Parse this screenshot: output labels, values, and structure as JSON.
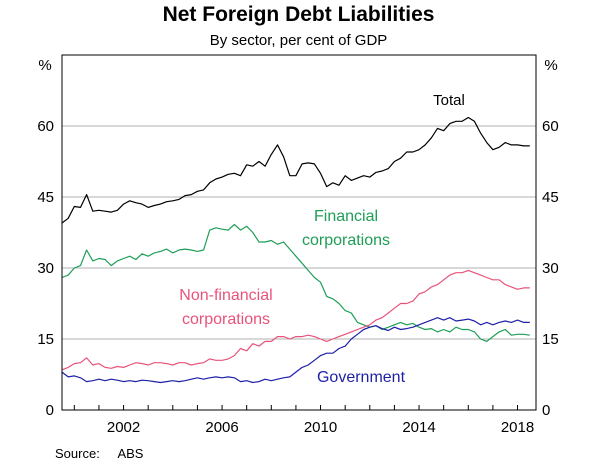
{
  "chart_data": {
    "type": "line",
    "title": "Net Foreign Debt Liabilities",
    "subtitle": "By sector, per cent of GDP",
    "ylabel_left": "%",
    "ylabel_right": "%",
    "xlim": [
      1999.5,
      2018.75
    ],
    "ylim": [
      0,
      75
    ],
    "yticks": [
      0,
      15,
      30,
      45,
      60
    ],
    "ytick_labels": [
      "0",
      "15",
      "30",
      "45",
      "60"
    ],
    "xticks": [
      2002,
      2006,
      2010,
      2014,
      2018
    ],
    "xtick_labels": [
      "2002",
      "2006",
      "2010",
      "2014",
      "2018"
    ],
    "grid": true,
    "legend": "inline labels",
    "series": [
      {
        "name": "Total",
        "color": "#000000",
        "x": [
          1999.5,
          1999.75,
          2000.0,
          2000.25,
          2000.5,
          2000.75,
          2001.0,
          2001.25,
          2001.5,
          2001.75,
          2002.0,
          2002.25,
          2002.5,
          2002.75,
          2003.0,
          2003.25,
          2003.5,
          2003.75,
          2004.0,
          2004.25,
          2004.5,
          2004.75,
          2005.0,
          2005.25,
          2005.5,
          2005.75,
          2006.0,
          2006.25,
          2006.5,
          2006.75,
          2007.0,
          2007.25,
          2007.5,
          2007.75,
          2008.0,
          2008.25,
          2008.5,
          2008.75,
          2009.0,
          2009.25,
          2009.5,
          2009.75,
          2010.0,
          2010.25,
          2010.5,
          2010.75,
          2011.0,
          2011.25,
          2011.5,
          2011.75,
          2012.0,
          2012.25,
          2012.5,
          2012.75,
          2013.0,
          2013.25,
          2013.5,
          2013.75,
          2014.0,
          2014.25,
          2014.5,
          2014.75,
          2015.0,
          2015.25,
          2015.5,
          2015.75,
          2016.0,
          2016.25,
          2016.5,
          2016.75,
          2017.0,
          2017.25,
          2017.5,
          2017.75,
          2018.0,
          2018.25,
          2018.5
        ],
        "values": [
          39.5,
          40.5,
          43.0,
          42.8,
          45.5,
          42.0,
          42.2,
          42.0,
          41.8,
          42.2,
          43.5,
          44.2,
          43.8,
          43.5,
          42.8,
          43.2,
          43.5,
          44.0,
          44.2,
          44.5,
          45.3,
          45.5,
          46.2,
          46.5,
          48.0,
          48.8,
          49.2,
          49.8,
          50.0,
          49.5,
          51.8,
          51.5,
          52.5,
          51.5,
          54.0,
          56.0,
          53.5,
          49.5,
          49.5,
          52.0,
          52.2,
          52.0,
          50.0,
          47.2,
          48.0,
          47.5,
          49.5,
          48.5,
          49.0,
          49.5,
          49.2,
          50.2,
          50.5,
          51.0,
          52.5,
          53.2,
          54.5,
          54.5,
          55.0,
          56.0,
          57.5,
          59.5,
          59.0,
          60.5,
          61.0,
          61.0,
          61.8,
          61.0,
          58.5,
          56.5,
          55.0,
          55.5,
          56.5,
          56.0,
          56.0,
          55.8,
          55.8
        ]
      },
      {
        "name": "Financial corporations",
        "color": "#1e9e57",
        "x": [
          1999.5,
          1999.75,
          2000.0,
          2000.25,
          2000.5,
          2000.75,
          2001.0,
          2001.25,
          2001.5,
          2001.75,
          2002.0,
          2002.25,
          2002.5,
          2002.75,
          2003.0,
          2003.25,
          2003.5,
          2003.75,
          2004.0,
          2004.25,
          2004.5,
          2004.75,
          2005.0,
          2005.25,
          2005.5,
          2005.75,
          2006.0,
          2006.25,
          2006.5,
          2006.75,
          2007.0,
          2007.25,
          2007.5,
          2007.75,
          2008.0,
          2008.25,
          2008.5,
          2008.75,
          2009.0,
          2009.25,
          2009.5,
          2009.75,
          2010.0,
          2010.25,
          2010.5,
          2010.75,
          2011.0,
          2011.25,
          2011.5,
          2011.75,
          2012.0,
          2012.25,
          2012.5,
          2012.75,
          2013.0,
          2013.25,
          2013.5,
          2013.75,
          2014.0,
          2014.25,
          2014.5,
          2014.75,
          2015.0,
          2015.25,
          2015.5,
          2015.75,
          2016.0,
          2016.25,
          2016.5,
          2016.75,
          2017.0,
          2017.25,
          2017.5,
          2017.75,
          2018.0,
          2018.25,
          2018.5
        ],
        "values": [
          28.0,
          28.5,
          30.0,
          30.5,
          33.8,
          31.5,
          32.0,
          31.8,
          30.5,
          31.5,
          32.0,
          32.5,
          31.8,
          33.0,
          32.5,
          33.2,
          33.5,
          34.0,
          33.2,
          33.8,
          34.0,
          33.8,
          33.5,
          33.8,
          38.0,
          38.5,
          38.2,
          38.0,
          39.2,
          38.0,
          38.8,
          37.5,
          35.5,
          35.5,
          35.8,
          35.0,
          35.5,
          34.0,
          32.5,
          31.0,
          29.5,
          28.0,
          27.0,
          24.0,
          23.5,
          22.5,
          21.0,
          20.5,
          18.5,
          18.0,
          17.5,
          17.8,
          17.0,
          17.5,
          18.0,
          18.5,
          18.0,
          18.3,
          17.5,
          17.0,
          17.2,
          16.5,
          17.0,
          16.5,
          17.5,
          17.0,
          17.0,
          16.5,
          15.0,
          14.5,
          15.5,
          16.5,
          17.0,
          15.8,
          16.0,
          16.0,
          15.8
        ]
      },
      {
        "name": "Non-financial corporations",
        "color": "#e8537a",
        "x": [
          1999.5,
          1999.75,
          2000.0,
          2000.25,
          2000.5,
          2000.75,
          2001.0,
          2001.25,
          2001.5,
          2001.75,
          2002.0,
          2002.25,
          2002.5,
          2002.75,
          2003.0,
          2003.25,
          2003.5,
          2003.75,
          2004.0,
          2004.25,
          2004.5,
          2004.75,
          2005.0,
          2005.25,
          2005.5,
          2005.75,
          2006.0,
          2006.25,
          2006.5,
          2006.75,
          2007.0,
          2007.25,
          2007.5,
          2007.75,
          2008.0,
          2008.25,
          2008.5,
          2008.75,
          2009.0,
          2009.25,
          2009.5,
          2009.75,
          2010.0,
          2010.25,
          2010.5,
          2010.75,
          2011.0,
          2011.25,
          2011.5,
          2011.75,
          2012.0,
          2012.25,
          2012.5,
          2012.75,
          2013.0,
          2013.25,
          2013.5,
          2013.75,
          2014.0,
          2014.25,
          2014.5,
          2014.75,
          2015.0,
          2015.25,
          2015.5,
          2015.75,
          2016.0,
          2016.25,
          2016.5,
          2016.75,
          2017.0,
          2017.25,
          2017.5,
          2017.75,
          2018.0,
          2018.25,
          2018.5
        ],
        "values": [
          8.5,
          9.0,
          9.8,
          10.0,
          11.0,
          9.5,
          9.8,
          9.0,
          8.8,
          9.2,
          9.0,
          9.5,
          10.0,
          9.8,
          9.5,
          10.0,
          10.0,
          9.8,
          9.5,
          10.0,
          10.0,
          9.5,
          9.8,
          10.0,
          10.8,
          10.5,
          10.5,
          10.8,
          11.5,
          13.0,
          12.5,
          14.0,
          13.5,
          14.5,
          14.5,
          15.5,
          15.5,
          15.0,
          15.5,
          15.5,
          15.8,
          15.5,
          15.0,
          14.5,
          15.0,
          15.5,
          16.0,
          16.5,
          17.0,
          17.5,
          18.0,
          19.0,
          19.5,
          20.5,
          21.5,
          22.5,
          22.5,
          23.0,
          24.5,
          25.0,
          26.0,
          26.5,
          27.5,
          28.5,
          29.0,
          29.0,
          29.5,
          29.0,
          28.5,
          28.0,
          27.5,
          27.5,
          26.5,
          26.0,
          25.5,
          25.8,
          25.8
        ]
      },
      {
        "name": "Government",
        "color": "#1f1fa8",
        "x": [
          1999.5,
          1999.75,
          2000.0,
          2000.25,
          2000.5,
          2000.75,
          2001.0,
          2001.25,
          2001.5,
          2001.75,
          2002.0,
          2002.25,
          2002.5,
          2002.75,
          2003.0,
          2003.25,
          2003.5,
          2003.75,
          2004.0,
          2004.25,
          2004.5,
          2004.75,
          2005.0,
          2005.25,
          2005.5,
          2005.75,
          2006.0,
          2006.25,
          2006.5,
          2006.75,
          2007.0,
          2007.25,
          2007.5,
          2007.75,
          2008.0,
          2008.25,
          2008.5,
          2008.75,
          2009.0,
          2009.25,
          2009.5,
          2009.75,
          2010.0,
          2010.25,
          2010.5,
          2010.75,
          2011.0,
          2011.25,
          2011.5,
          2011.75,
          2012.0,
          2012.25,
          2012.5,
          2012.75,
          2013.0,
          2013.25,
          2013.5,
          2013.75,
          2014.0,
          2014.25,
          2014.5,
          2014.75,
          2015.0,
          2015.25,
          2015.5,
          2015.75,
          2016.0,
          2016.25,
          2016.5,
          2016.75,
          2017.0,
          2017.25,
          2017.5,
          2017.75,
          2018.0,
          2018.25,
          2018.5
        ],
        "values": [
          8.0,
          7.0,
          7.2,
          6.8,
          6.0,
          6.2,
          6.5,
          6.2,
          6.5,
          6.3,
          6.0,
          6.2,
          6.0,
          6.3,
          6.2,
          6.0,
          5.8,
          6.0,
          6.2,
          6.0,
          6.2,
          6.5,
          6.8,
          6.5,
          6.8,
          7.0,
          6.8,
          7.0,
          6.8,
          6.0,
          6.2,
          5.8,
          6.0,
          6.5,
          6.2,
          6.5,
          6.8,
          7.0,
          8.0,
          9.0,
          9.5,
          10.5,
          11.5,
          12.0,
          12.0,
          13.0,
          13.5,
          15.0,
          16.0,
          17.0,
          17.5,
          17.8,
          17.2,
          16.8,
          17.5,
          17.0,
          17.2,
          17.5,
          18.0,
          18.5,
          19.0,
          19.5,
          19.0,
          19.5,
          18.8,
          19.0,
          19.2,
          18.8,
          18.0,
          18.5,
          18.0,
          18.5,
          18.8,
          18.5,
          19.0,
          18.5,
          18.5
        ]
      }
    ],
    "series_label_text": {
      "total": "Total",
      "financial_1": "Financial",
      "financial_2": "corporations",
      "nonfinancial_1": "Non-financial",
      "nonfinancial_2": "corporations",
      "government": "Government"
    }
  },
  "source_label": "Source:",
  "source_value": "ABS"
}
